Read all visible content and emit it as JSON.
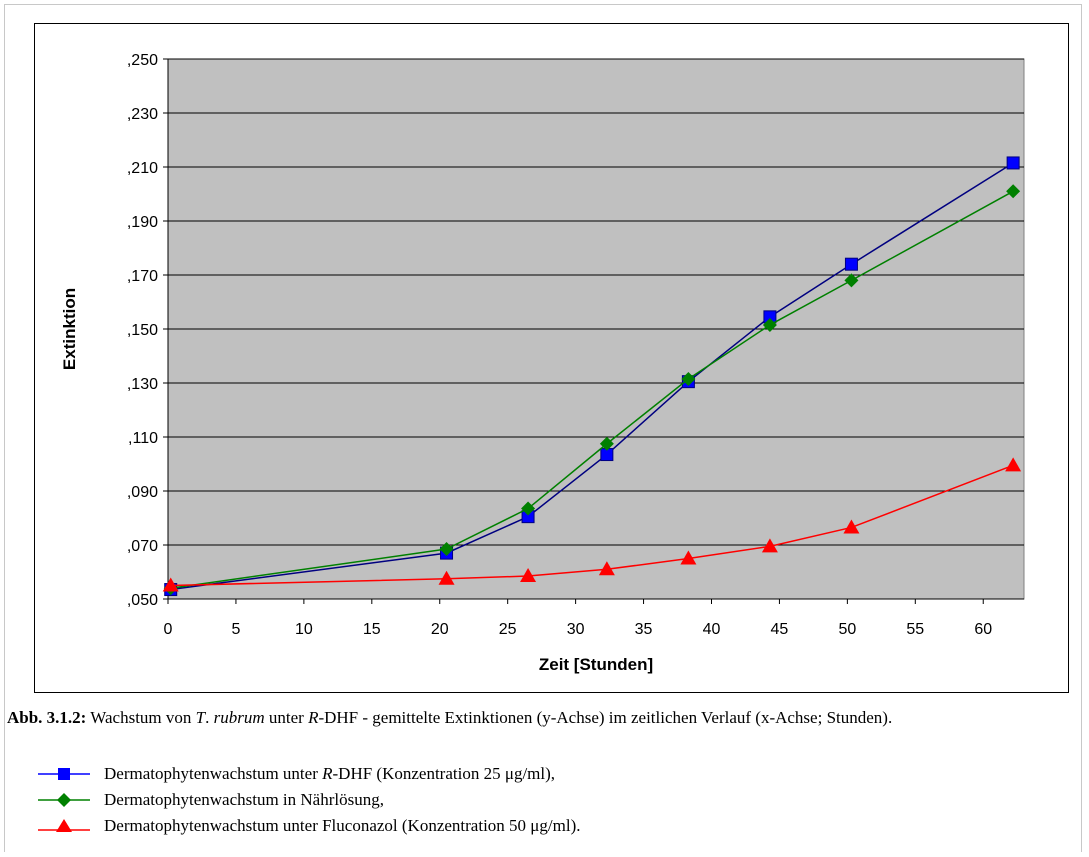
{
  "chart_data": {
    "type": "line",
    "xlabel": "Zeit [Stunden]",
    "ylabel": "Extinktion",
    "xlim": [
      0,
      63
    ],
    "ylim": [
      0.05,
      0.25
    ],
    "x_ticks": [
      "0",
      "5",
      "10",
      "15",
      "20",
      "25",
      "30",
      "35",
      "40",
      "45",
      "50",
      "55",
      "60"
    ],
    "y_ticks": [
      ",050",
      ",070",
      ",090",
      ",110",
      ",130",
      ",150",
      ",170",
      ",190",
      ",210",
      ",230",
      ",250"
    ],
    "grid": "horizontal",
    "plot_background": "#c0c0c0",
    "series": [
      {
        "key": "rdhf",
        "color": "#000080",
        "marker_color": "#0000ff",
        "marker": "square",
        "points": [
          [
            0.2,
            0.0535
          ],
          [
            20.5,
            0.067
          ],
          [
            26.5,
            0.0805
          ],
          [
            32.3,
            0.1035
          ],
          [
            38.3,
            0.1305
          ],
          [
            44.3,
            0.1545
          ],
          [
            50.3,
            0.174
          ],
          [
            62.2,
            0.2115
          ]
        ]
      },
      {
        "key": "naehrloesung",
        "color": "#008000",
        "marker_color": "#008000",
        "marker": "diamond",
        "points": [
          [
            0.2,
            0.054
          ],
          [
            20.5,
            0.0685
          ],
          [
            26.5,
            0.0835
          ],
          [
            32.3,
            0.1075
          ],
          [
            38.3,
            0.1315
          ],
          [
            44.3,
            0.1515
          ],
          [
            50.3,
            0.168
          ],
          [
            62.2,
            0.201
          ]
        ]
      },
      {
        "key": "fluconazol",
        "color": "#ff0000",
        "marker_color": "#ff0000",
        "marker": "triangle",
        "points": [
          [
            0.2,
            0.055
          ],
          [
            20.5,
            0.0575
          ],
          [
            26.5,
            0.0585
          ],
          [
            32.3,
            0.061
          ],
          [
            38.3,
            0.065
          ],
          [
            44.3,
            0.0695
          ],
          [
            50.3,
            0.0765
          ],
          [
            62.2,
            0.0995
          ]
        ]
      }
    ]
  },
  "caption": {
    "label": "Abb. 3.1.2:",
    "t1": " Wachstum von ",
    "species_genus": "T",
    "t2": ". ",
    "species": "rubrum",
    "t3": " unter ",
    "r_prefix": "R",
    "t4": "-DHF - gemittelte Extinktionen (y-Achse) im zeitlichen Verlauf (x-Achse; Stunden)."
  },
  "legend": [
    {
      "pre": "Dermatophytenwachstum unter ",
      "em": "R",
      "post": "-DHF (Konzentration 25 μg/ml),",
      "color": "#0000ff",
      "line": "#0000ff",
      "marker": "square"
    },
    {
      "pre": "Dermatophytenwachstum in Nährlösung,",
      "em": "",
      "post": "",
      "color": "#008000",
      "line": "#008000",
      "marker": "diamond"
    },
    {
      "pre": "Dermatophytenwachstum unter Fluconazol (Konzentration 50 μg/ml).",
      "em": "",
      "post": "",
      "color": "#ff0000",
      "line": "#ff0000",
      "marker": "triangle"
    }
  ]
}
